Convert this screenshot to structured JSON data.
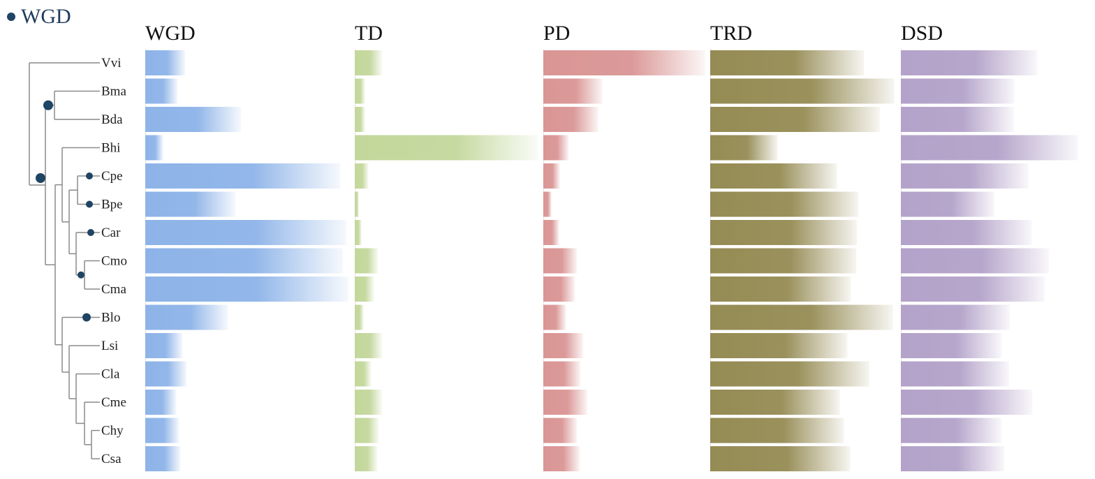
{
  "legend": {
    "marker_color": "#1f4464",
    "label": "WGD"
  },
  "chart_data": {
    "type": "bar",
    "orientation": "horizontal",
    "categories": [
      "Vvi",
      "Bma",
      "Bda",
      "Bhi",
      "Cpe",
      "Bpe",
      "Car",
      "Cmo",
      "Cma",
      "Blo",
      "Lsi",
      "Cla",
      "Cme",
      "Chy",
      "Csa"
    ],
    "series": [
      {
        "name": "WGD",
        "color": "#8db3e8",
        "values": [
          58,
          47,
          139,
          26,
          283,
          131,
          292,
          287,
          295,
          120,
          54,
          60,
          45,
          49,
          51
        ]
      },
      {
        "name": "TD",
        "color": "#c3d79b",
        "values": [
          40,
          15,
          15,
          266,
          20,
          6,
          10,
          34,
          28,
          13,
          40,
          24,
          40,
          35,
          33
        ]
      },
      {
        "name": "PD",
        "color": "#d99594",
        "values": [
          235,
          86,
          80,
          37,
          24,
          12,
          23,
          49,
          46,
          33,
          58,
          54,
          64,
          49,
          53
        ]
      },
      {
        "name": "TRD",
        "color": "#958b54",
        "values": [
          223,
          267,
          246,
          98,
          184,
          215,
          213,
          212,
          204,
          265,
          199,
          231,
          188,
          194,
          203
        ]
      },
      {
        "name": "DSD",
        "color": "#b3a2c9",
        "values": [
          198,
          165,
          164,
          257,
          185,
          136,
          190,
          215,
          209,
          158,
          146,
          157,
          191,
          146,
          150
        ]
      }
    ],
    "xlabel": "",
    "ylabel": "",
    "grid": false,
    "legend_position": "top-left",
    "tree": {
      "wgd_nodes": [
        "Bma+Bda",
        "Cpe",
        "Bpe",
        "Car",
        "Cmo+Cma",
        "Blo",
        "root"
      ]
    }
  }
}
